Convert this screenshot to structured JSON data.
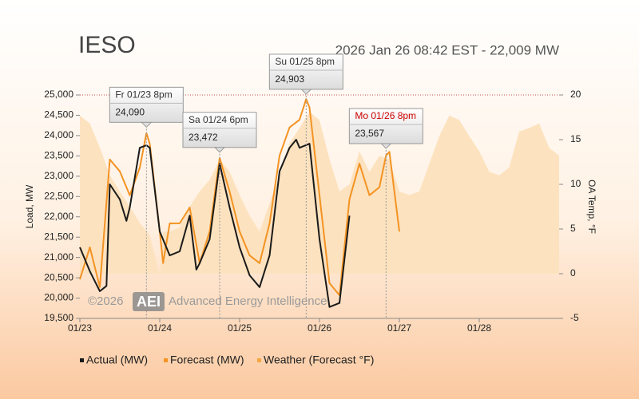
{
  "chart_data": {
    "type": "line",
    "title": "IESO",
    "subtitle": "2026 Jan 26 08:42 EST - 22,009 MW",
    "watermark": {
      "copyright": "©2026",
      "logo": "AEI",
      "name": "Advanced Energy Intelligence"
    },
    "y_label": "Load, MW",
    "y2_label": "OA Temp, °F",
    "xlim": [
      0,
      144
    ],
    "xticks": [
      {
        "value": 0,
        "label": "01/23"
      },
      {
        "value": 24,
        "label": "01/24"
      },
      {
        "value": 48,
        "label": "01/25"
      },
      {
        "value": 72,
        "label": "01/26"
      },
      {
        "value": 96,
        "label": "01/27"
      },
      {
        "value": 120,
        "label": "01/28"
      }
    ],
    "ylim": [
      19500,
      25000
    ],
    "yticks": [
      {
        "value": 19500,
        "label": "19,500"
      },
      {
        "value": 20000,
        "label": "20,000"
      },
      {
        "value": 20500,
        "label": "20,500"
      },
      {
        "value": 21000,
        "label": "21,000"
      },
      {
        "value": 21500,
        "label": "21,500"
      },
      {
        "value": 22000,
        "label": "22,000"
      },
      {
        "value": 22500,
        "label": "22,500"
      },
      {
        "value": 23000,
        "label": "23,000"
      },
      {
        "value": 23500,
        "label": "23,500"
      },
      {
        "value": 24000,
        "label": "24,000"
      },
      {
        "value": 24500,
        "label": "24,500"
      },
      {
        "value": 25000,
        "label": "25,000"
      }
    ],
    "y2lim": [
      -5,
      20
    ],
    "y2ticks": [
      -5,
      0,
      5,
      10,
      15,
      20
    ],
    "series": [
      {
        "name": "Weather (Forecast °F)",
        "color": "#f5a742",
        "fill": "#fde2bf",
        "area": true,
        "axis": "y2",
        "x": [
          0,
          3,
          6,
          9,
          12,
          15,
          18,
          21,
          24,
          25,
          27,
          30,
          33,
          36,
          39,
          42,
          45,
          48,
          51,
          54,
          57,
          60,
          63,
          66,
          69,
          72,
          75,
          78,
          81,
          84,
          87,
          90,
          93,
          96,
          99,
          102,
          105,
          108,
          111,
          114,
          117,
          120,
          123,
          126,
          129,
          132,
          135,
          138,
          141,
          144
        ],
        "values": [
          17.7,
          16.8,
          14.1,
          11,
          9.2,
          7.5,
          5.7,
          4.3,
          -0.2,
          4.7,
          4.7,
          5.2,
          7.5,
          9.2,
          10.5,
          12.8,
          11.4,
          8.8,
          6.5,
          4.7,
          7.9,
          11,
          14.6,
          16.3,
          18.1,
          17.2,
          12.8,
          9.2,
          10,
          13.7,
          11.4,
          13.2,
          12.8,
          9.2,
          8.8,
          9.2,
          12.3,
          15.4,
          17.7,
          17.2,
          15.4,
          13.7,
          11.4,
          11,
          11.9,
          15.9,
          16.3,
          16.8,
          14.1,
          13.2
        ]
      },
      {
        "name": "Forecast (MW)",
        "color": "#f39323",
        "x": [
          0,
          3,
          6,
          9,
          12,
          15,
          18,
          20,
          21,
          24,
          25,
          27,
          30,
          33,
          36,
          39,
          42,
          45,
          48,
          51,
          54,
          57,
          60,
          63,
          66,
          68,
          69,
          72,
          75,
          78,
          81,
          84,
          87,
          90,
          92,
          93,
          96
        ],
        "values": [
          20460,
          21250,
          20270,
          23410,
          23120,
          22530,
          23210,
          24060,
          23800,
          21640,
          20860,
          21840,
          21840,
          22230,
          20860,
          21640,
          23450,
          22620,
          21640,
          21050,
          20860,
          21840,
          23510,
          24200,
          24390,
          24900,
          24690,
          22530,
          20370,
          20070,
          22430,
          23310,
          22530,
          22730,
          23510,
          23600,
          21640
        ]
      },
      {
        "name": "Actual (MW)",
        "color": "#1a1a1a",
        "x": [
          0,
          3,
          6,
          8,
          9,
          12,
          14,
          15,
          18,
          20,
          21,
          24,
          27,
          30,
          33,
          35,
          36,
          39,
          42,
          45,
          48,
          51,
          54,
          57,
          60,
          63,
          65,
          66,
          69,
          72,
          75,
          78,
          81
        ],
        "values": [
          21250,
          20660,
          20170,
          20300,
          22800,
          22430,
          21900,
          22230,
          23700,
          23760,
          23700,
          21640,
          21050,
          21150,
          22030,
          20700,
          20860,
          21450,
          23310,
          22230,
          21250,
          20560,
          20270,
          21050,
          23120,
          23700,
          23900,
          23700,
          23800,
          21450,
          19780,
          19880,
          22030
        ]
      }
    ],
    "annotations": [
      {
        "text": "Fr 01/23 8pm",
        "x": 20,
        "value": 24090,
        "value_label": "24,090",
        "text_color": "#333333"
      },
      {
        "text": "Sa 01/24 6pm",
        "x": 42,
        "value": 23472,
        "value_label": "23,472",
        "text_color": "#333333"
      },
      {
        "text": "Su 01/25 8pm",
        "x": 68,
        "value": 24903,
        "value_label": "24,903",
        "text_color": "#333333"
      },
      {
        "text": "Mo 01/26 8pm",
        "x": 92,
        "value": 23567,
        "value_label": "23,567",
        "text_color": "#cc0000"
      }
    ]
  }
}
